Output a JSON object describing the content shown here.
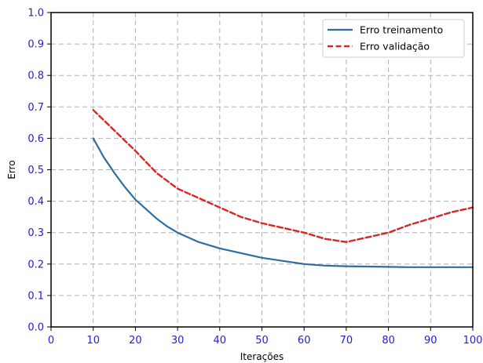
{
  "chart_data": {
    "type": "line",
    "title": "",
    "xlabel": "Iterações",
    "ylabel": "Erro",
    "xlim": [
      0,
      100
    ],
    "ylim": [
      0.0,
      1.0
    ],
    "xticks": [
      0,
      10,
      20,
      30,
      40,
      50,
      60,
      70,
      80,
      90,
      100
    ],
    "yticks": [
      0.0,
      0.1,
      0.2,
      0.3,
      0.4,
      0.5,
      0.6,
      0.7,
      0.8,
      0.9,
      1.0
    ],
    "ytick_labels": [
      "0.0",
      "0.1",
      "0.2",
      "0.3",
      "0.4",
      "0.5",
      "0.6",
      "0.7",
      "0.8",
      "0.9",
      "1.0"
    ],
    "grid": true,
    "grid_style": "dashed",
    "tick_label_color": "#1f1fd0",
    "legend_position": "top-right",
    "series": [
      {
        "name": "Erro treinamento",
        "color": "#2e6e9e",
        "line_style": "solid",
        "x": [
          10,
          12.5,
          15,
          17.5,
          20,
          22.5,
          25,
          27.5,
          30,
          35,
          40,
          45,
          50,
          55,
          60,
          65,
          70,
          75,
          80,
          85,
          90,
          95,
          100
        ],
        "y": [
          0.6,
          0.54,
          0.49,
          0.445,
          0.405,
          0.375,
          0.345,
          0.32,
          0.3,
          0.27,
          0.25,
          0.235,
          0.22,
          0.21,
          0.2,
          0.195,
          0.193,
          0.192,
          0.191,
          0.19,
          0.19,
          0.19,
          0.19
        ]
      },
      {
        "name": "Erro validação",
        "color": "#d62728",
        "line_style": "dashed",
        "x": [
          10,
          15,
          20,
          25,
          30,
          35,
          40,
          45,
          50,
          55,
          60,
          65,
          70,
          75,
          80,
          85,
          90,
          95,
          100
        ],
        "y": [
          0.69,
          0.625,
          0.56,
          0.49,
          0.44,
          0.41,
          0.38,
          0.35,
          0.33,
          0.315,
          0.3,
          0.28,
          0.27,
          0.285,
          0.3,
          0.325,
          0.345,
          0.365,
          0.38
        ]
      }
    ]
  }
}
